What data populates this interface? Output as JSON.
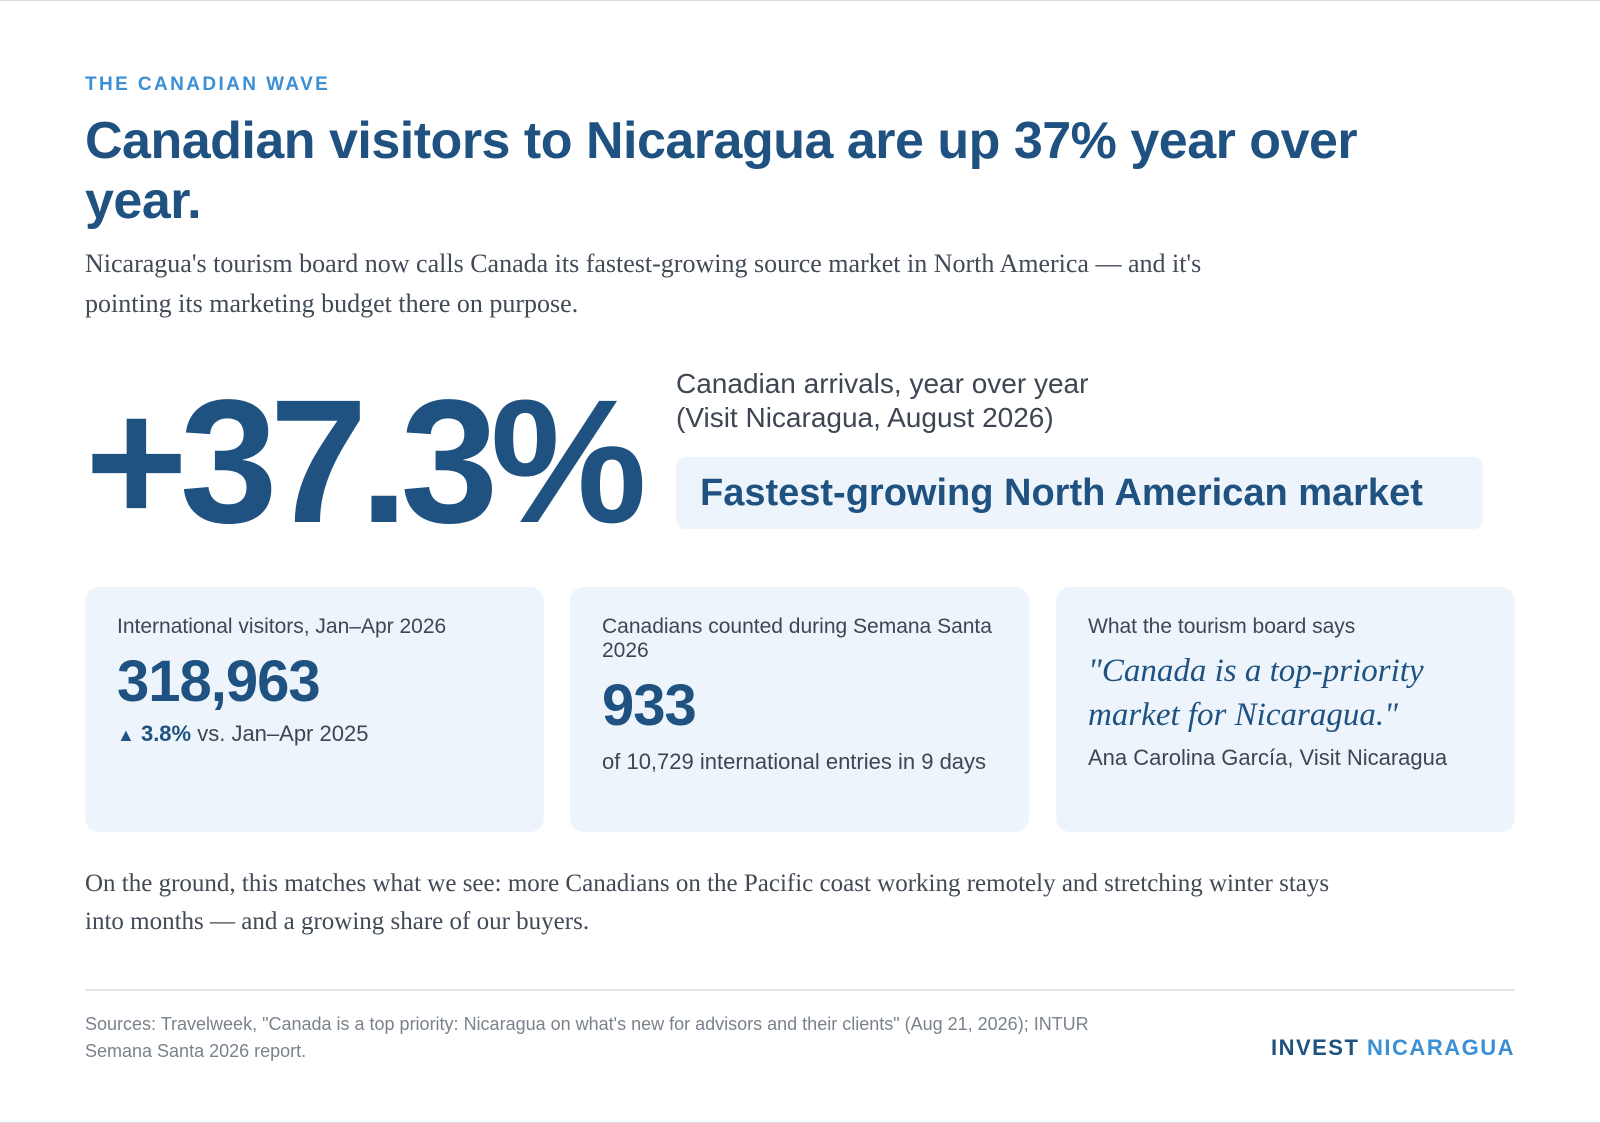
{
  "kicker": "THE CANADIAN WAVE",
  "headline": "Canadian visitors to Nicaragua are up 37% year over year.",
  "dek": "Nicaragua's tourism board now calls Canada its fastest-growing source market in North America — and it's pointing its marketing budget there on purpose.",
  "hero": {
    "value": "+37.3%",
    "caption_line1": "Canadian arrivals, year over year",
    "caption_line2": "(Visit Nicaragua, August 2026)",
    "pill": "Fastest-growing North American market"
  },
  "cards": [
    {
      "label": "International visitors, Jan–Apr 2026",
      "value": "318,963",
      "change_arrow": "▲",
      "change_pct": "3.8%",
      "change_text": " vs. Jan–Apr 2025"
    },
    {
      "label": "Canadians counted during Semana Santa 2026",
      "value": "933",
      "foot": "of 10,729 international entries in 9 days"
    },
    {
      "label": "What the tourism board says",
      "quote": "\"Canada is a top-priority market for Nicaragua.\"",
      "attribution": "Ana Carolina García, Visit Nicaragua"
    }
  ],
  "body_text": "On the ground, this matches what we see: more Canadians on the Pacific coast working remotely and stretching winter stays into months — and a growing share of our buyers.",
  "sources": "Sources: Travelweek, \"Canada is a top priority: Nicaragua on what's new for advisors and their clients\" (Aug 21, 2026); INTUR Semana Santa 2026 report.",
  "brand": {
    "part1": "INVEST",
    "part2": "NICARAGUA"
  },
  "colors": {
    "primary": "#1f5280",
    "accent": "#3b8fd4",
    "card_bg": "#edf4fb",
    "body_text": "#414a55",
    "muted": "#7a828c"
  }
}
